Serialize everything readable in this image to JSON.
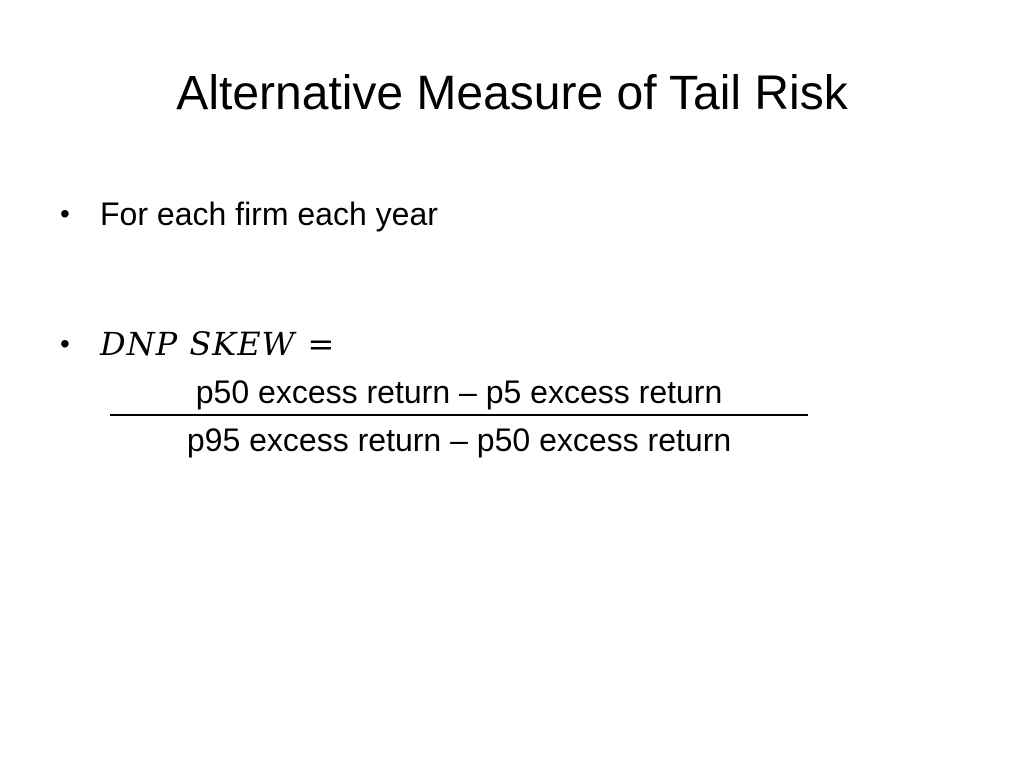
{
  "slide": {
    "title": "Alternative Measure of Tail Risk",
    "bullets": [
      {
        "marker": "•",
        "text": "For each firm each year"
      },
      {
        "marker": "•",
        "lhs": "DNP SKEW",
        "operator": "="
      }
    ],
    "fraction": {
      "numerator": "p50 excess return – p5 excess return",
      "denominator": "p95 excess return – p50 excess return"
    }
  }
}
